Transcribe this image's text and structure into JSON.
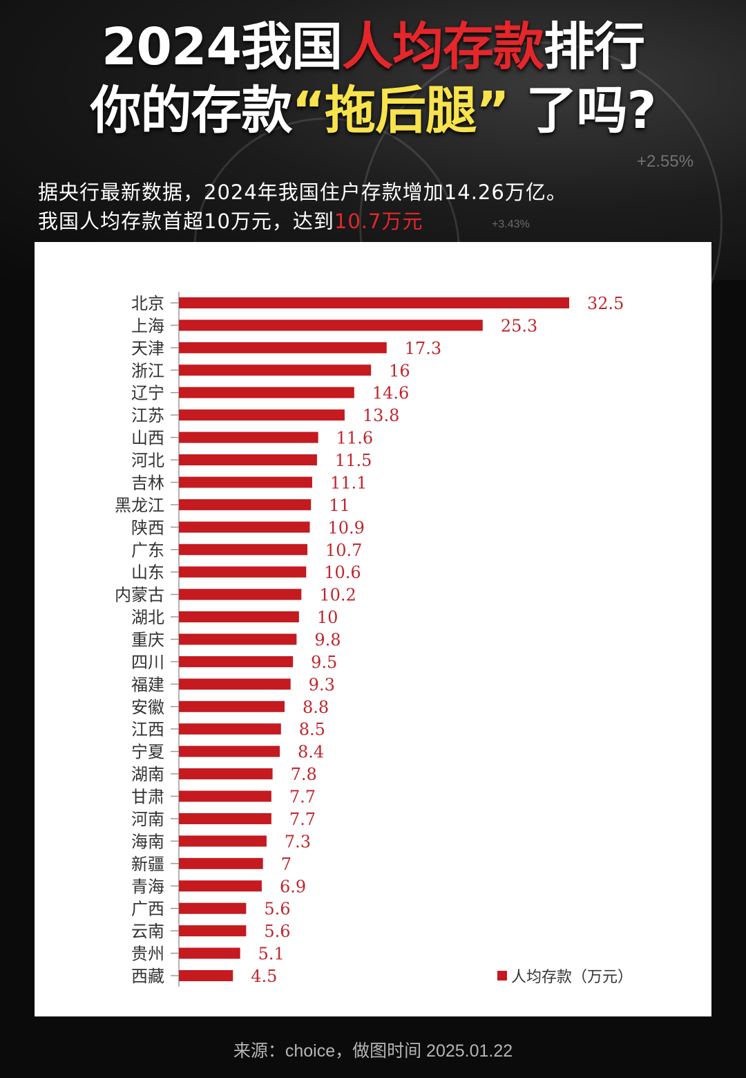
{
  "header": {
    "title_line1": {
      "pre": "2024我国",
      "highlight": "人均存款",
      "post": "排行"
    },
    "title_line2": {
      "pre": "你的存款",
      "highlight": "“拖后腿”",
      "post": " 了吗?"
    },
    "subtitle_line1": "据央行最新数据，2024年我国住户存款增加14.26万亿。",
    "subtitle_line2": {
      "pre": "我国人均存款首超10万元，达到",
      "highlight": "10.7万元"
    },
    "background_labels": [
      "+2.55%",
      "+3.43%"
    ]
  },
  "colors": {
    "bar": "#c41a20",
    "value_label": "#c0262d",
    "title_highlight": "#e5262b",
    "quote_highlight": "#f7e34b"
  },
  "chart_data": {
    "type": "bar",
    "orientation": "horizontal",
    "categories": [
      "北京",
      "上海",
      "天津",
      "浙江",
      "辽宁",
      "江苏",
      "山西",
      "河北",
      "吉林",
      "黑龙江",
      "陕西",
      "广东",
      "山东",
      "内蒙古",
      "湖北",
      "重庆",
      "四川",
      "福建",
      "安徽",
      "江西",
      "宁夏",
      "湖南",
      "甘肃",
      "河南",
      "海南",
      "新疆",
      "青海",
      "广西",
      "云南",
      "贵州",
      "西藏"
    ],
    "series": [
      {
        "name": "人均存款（万元）",
        "values": [
          32.5,
          25.3,
          17.3,
          16,
          14.6,
          13.8,
          11.6,
          11.5,
          11.1,
          11,
          10.9,
          10.7,
          10.6,
          10.2,
          10,
          9.8,
          9.5,
          9.3,
          8.8,
          8.5,
          8.4,
          7.8,
          7.7,
          7.7,
          7.3,
          7,
          6.9,
          5.6,
          5.6,
          5.1,
          4.5
        ]
      }
    ],
    "xlim": [
      0,
      32.5
    ],
    "data_labels": true,
    "grid": false,
    "legend": "bottom-right"
  },
  "footer": {
    "source": "来源：choice，做图时间 2025.01.22"
  }
}
